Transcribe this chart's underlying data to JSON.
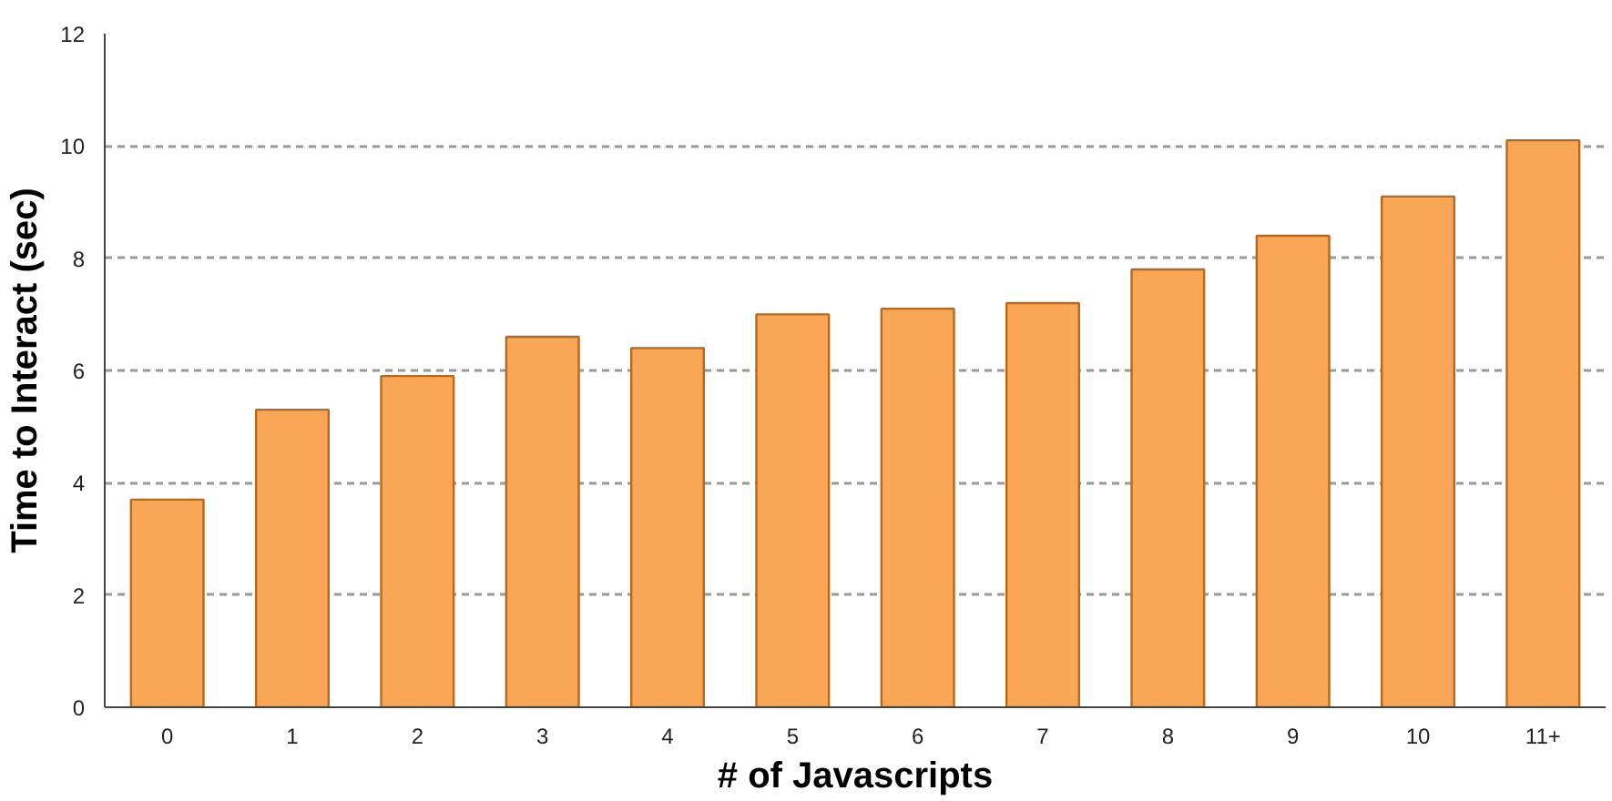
{
  "chart_data": {
    "type": "bar",
    "xlabel": "# of Javascripts",
    "ylabel": "Time to Interact (sec)",
    "categories": [
      "0",
      "1",
      "2",
      "3",
      "4",
      "5",
      "6",
      "7",
      "8",
      "9",
      "10",
      "11+"
    ],
    "values": [
      3.7,
      5.3,
      5.9,
      6.6,
      6.4,
      7.0,
      7.1,
      7.2,
      7.8,
      8.4,
      9.1,
      10.1
    ],
    "color": "#f9a656",
    "ylim": [
      0,
      12
    ],
    "yticks": [
      0,
      2,
      4,
      6,
      8,
      10,
      12
    ],
    "grid": "y"
  }
}
